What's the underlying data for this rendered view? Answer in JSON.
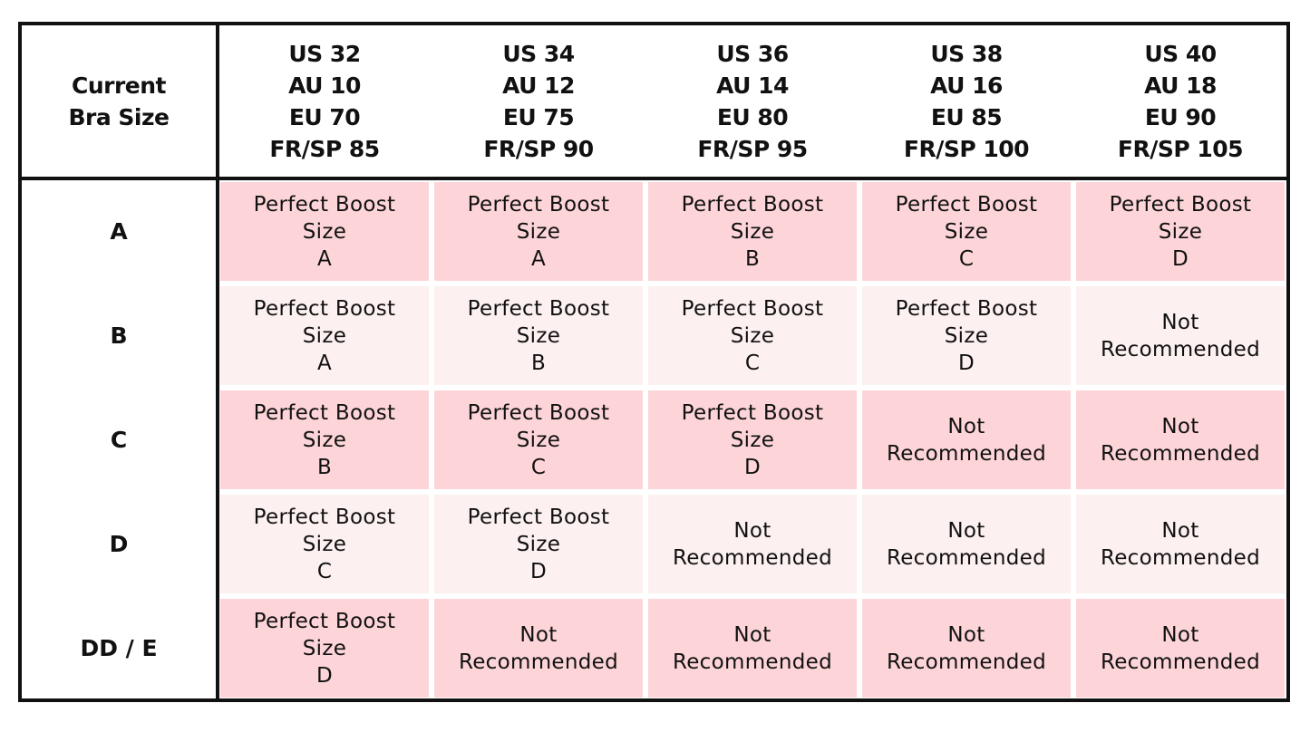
{
  "table": {
    "corner": [
      "Current",
      "Bra Size"
    ],
    "columns": [
      [
        "US 32",
        "AU 10",
        "EU 70",
        "FR/SP 85"
      ],
      [
        "US 34",
        "AU 12",
        "EU 75",
        "FR/SP 90"
      ],
      [
        "US 36",
        "AU 14",
        "EU 80",
        "FR/SP 95"
      ],
      [
        "US 38",
        "AU 16",
        "EU 85",
        "FR/SP 100"
      ],
      [
        "US 40",
        "AU 18",
        "EU 90",
        "FR/SP 105"
      ]
    ],
    "row_labels": [
      "A",
      "B",
      "C",
      "D",
      "DD / E"
    ],
    "rows": [
      [
        [
          "Perfect Boost",
          "Size",
          "A"
        ],
        [
          "Perfect Boost",
          "Size",
          "A"
        ],
        [
          "Perfect Boost",
          "Size",
          "B"
        ],
        [
          "Perfect Boost",
          "Size",
          "C"
        ],
        [
          "Perfect Boost",
          "Size",
          "D"
        ]
      ],
      [
        [
          "Perfect Boost",
          "Size",
          "A"
        ],
        [
          "Perfect Boost",
          "Size",
          "B"
        ],
        [
          "Perfect Boost",
          "Size",
          "C"
        ],
        [
          "Perfect Boost",
          "Size",
          "D"
        ],
        [
          "Not",
          "Recommended"
        ]
      ],
      [
        [
          "Perfect Boost",
          "Size",
          "B"
        ],
        [
          "Perfect Boost",
          "Size",
          "C"
        ],
        [
          "Perfect Boost",
          "Size",
          "D"
        ],
        [
          "Not",
          "Recommended"
        ],
        [
          "Not",
          "Recommended"
        ]
      ],
      [
        [
          "Perfect Boost",
          "Size",
          "C"
        ],
        [
          "Perfect Boost",
          "Size",
          "D"
        ],
        [
          "Not",
          "Recommended"
        ],
        [
          "Not",
          "Recommended"
        ],
        [
          "Not",
          "Recommended"
        ]
      ],
      [
        [
          "Perfect Boost",
          "Size",
          "D"
        ],
        [
          "Not",
          "Recommended"
        ],
        [
          "Not",
          "Recommended"
        ],
        [
          "Not",
          "Recommended"
        ],
        [
          "Not",
          "Recommended"
        ]
      ]
    ]
  }
}
